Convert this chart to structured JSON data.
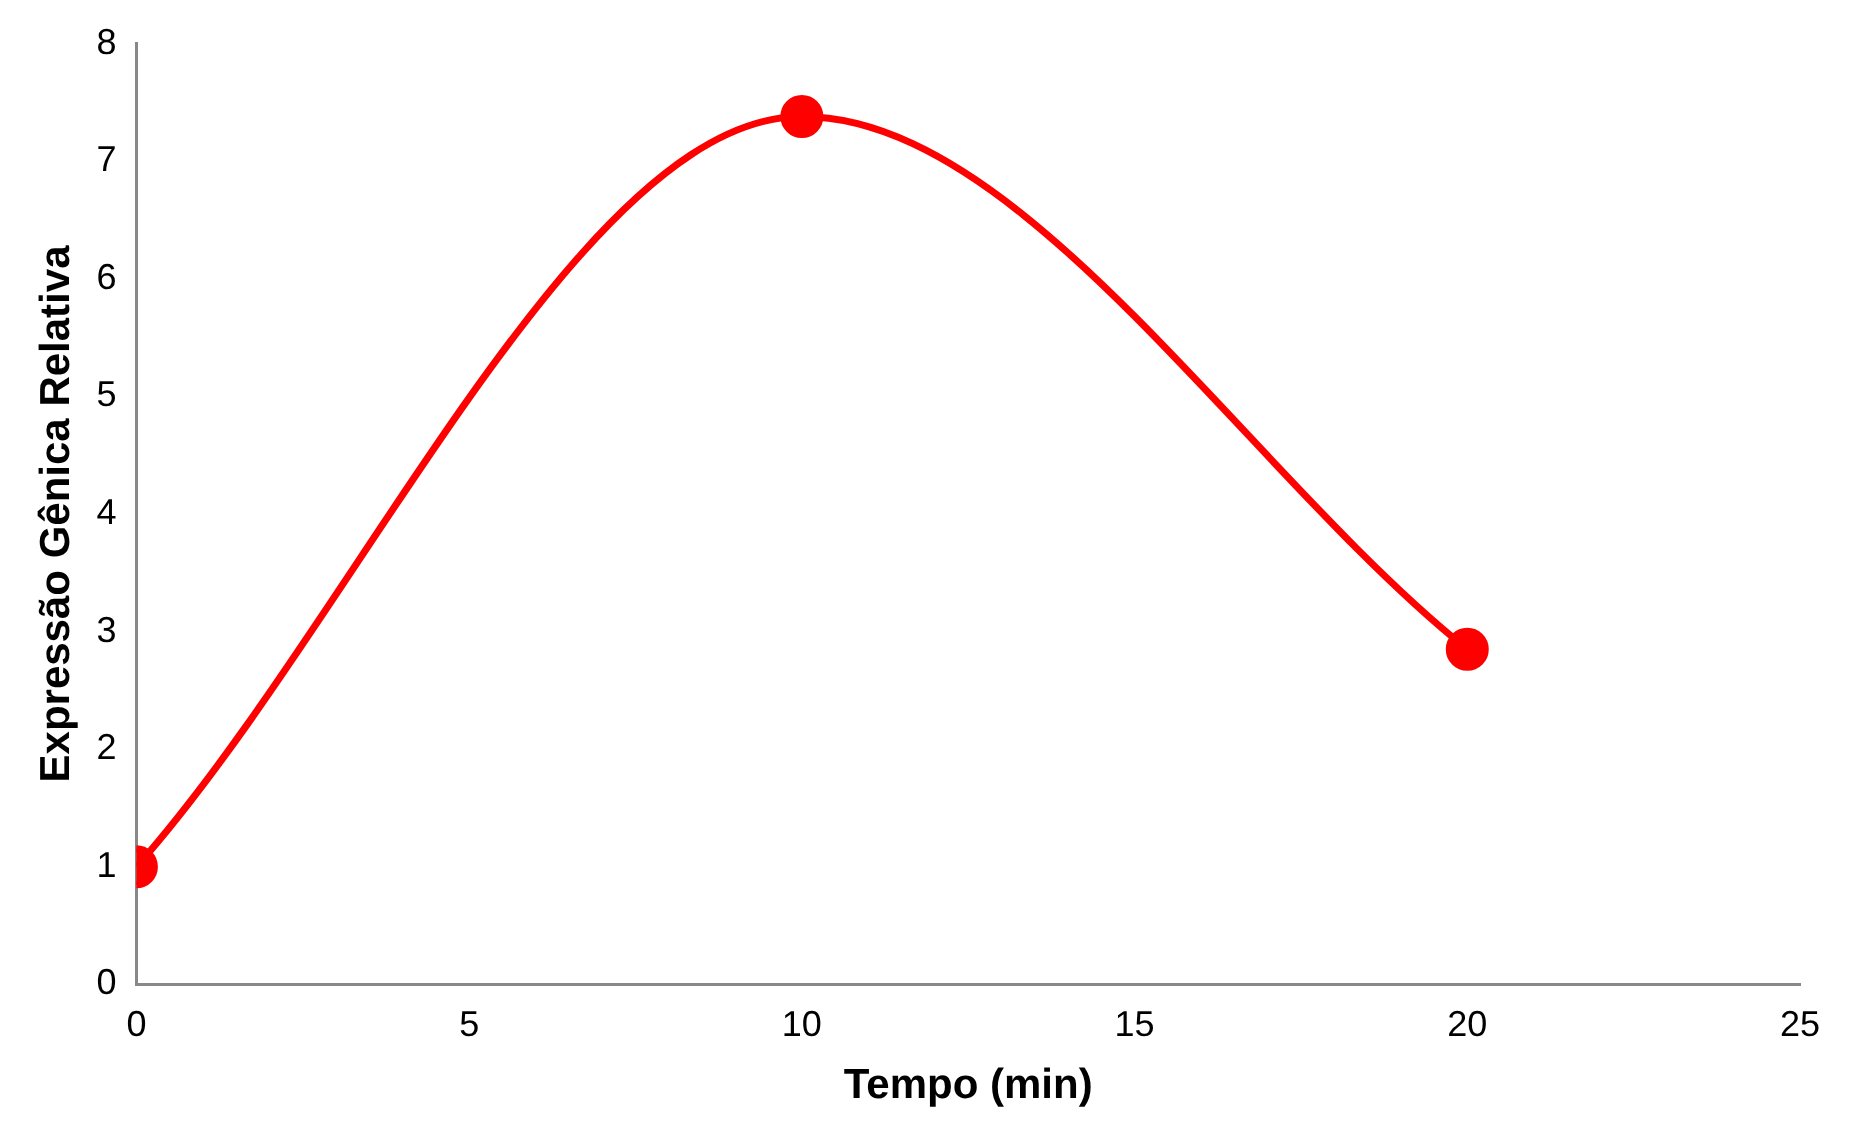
{
  "chart_data": {
    "type": "line",
    "xlabel": "Tempo (min)",
    "ylabel": "Expressão Gênica Relativa",
    "x": [
      0,
      10,
      20
    ],
    "values": [
      1,
      7.38,
      2.85
    ],
    "color": "#ff0000",
    "xlim": [
      0,
      25
    ],
    "xticks": [
      0,
      5,
      10,
      15,
      20,
      25
    ],
    "ylim": [
      0,
      8
    ],
    "yticks": [
      0,
      1,
      2,
      3,
      4,
      5,
      6,
      7,
      8
    ],
    "marker": "circle",
    "line_style": "solid"
  }
}
